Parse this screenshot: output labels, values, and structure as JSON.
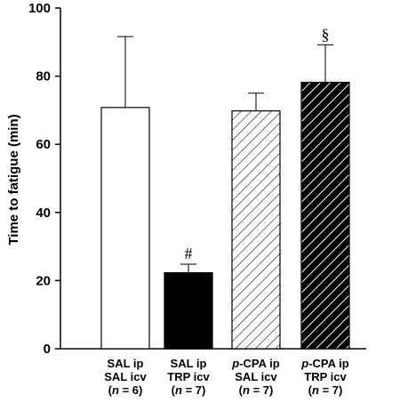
{
  "chart_data": {
    "type": "bar",
    "ylabel": "Time to fatigue (min)",
    "xlabel": "",
    "ylim": [
      0,
      100
    ],
    "yticks": [
      0,
      20,
      40,
      60,
      80,
      100
    ],
    "categories": [
      {
        "lines": [
          "SAL ip",
          "SAL icv"
        ],
        "n": "6"
      },
      {
        "lines": [
          "SAL ip",
          "TRP icv"
        ],
        "n": "7"
      },
      {
        "lines": [
          "p-CPA ip",
          "SAL icv"
        ],
        "n": "7"
      },
      {
        "lines": [
          "p-CPA ip",
          "TRP icv"
        ],
        "n": "7"
      }
    ],
    "values": [
      70.8,
      22.3,
      69.8,
      78.2
    ],
    "errors": [
      20.8,
      2.5,
      5.2,
      11.0
    ],
    "annotations": [
      "",
      "#",
      "",
      "§"
    ],
    "fills": [
      "white",
      "black",
      "hatch-light",
      "hatch-dark"
    ],
    "grid": false,
    "legend": "none"
  }
}
